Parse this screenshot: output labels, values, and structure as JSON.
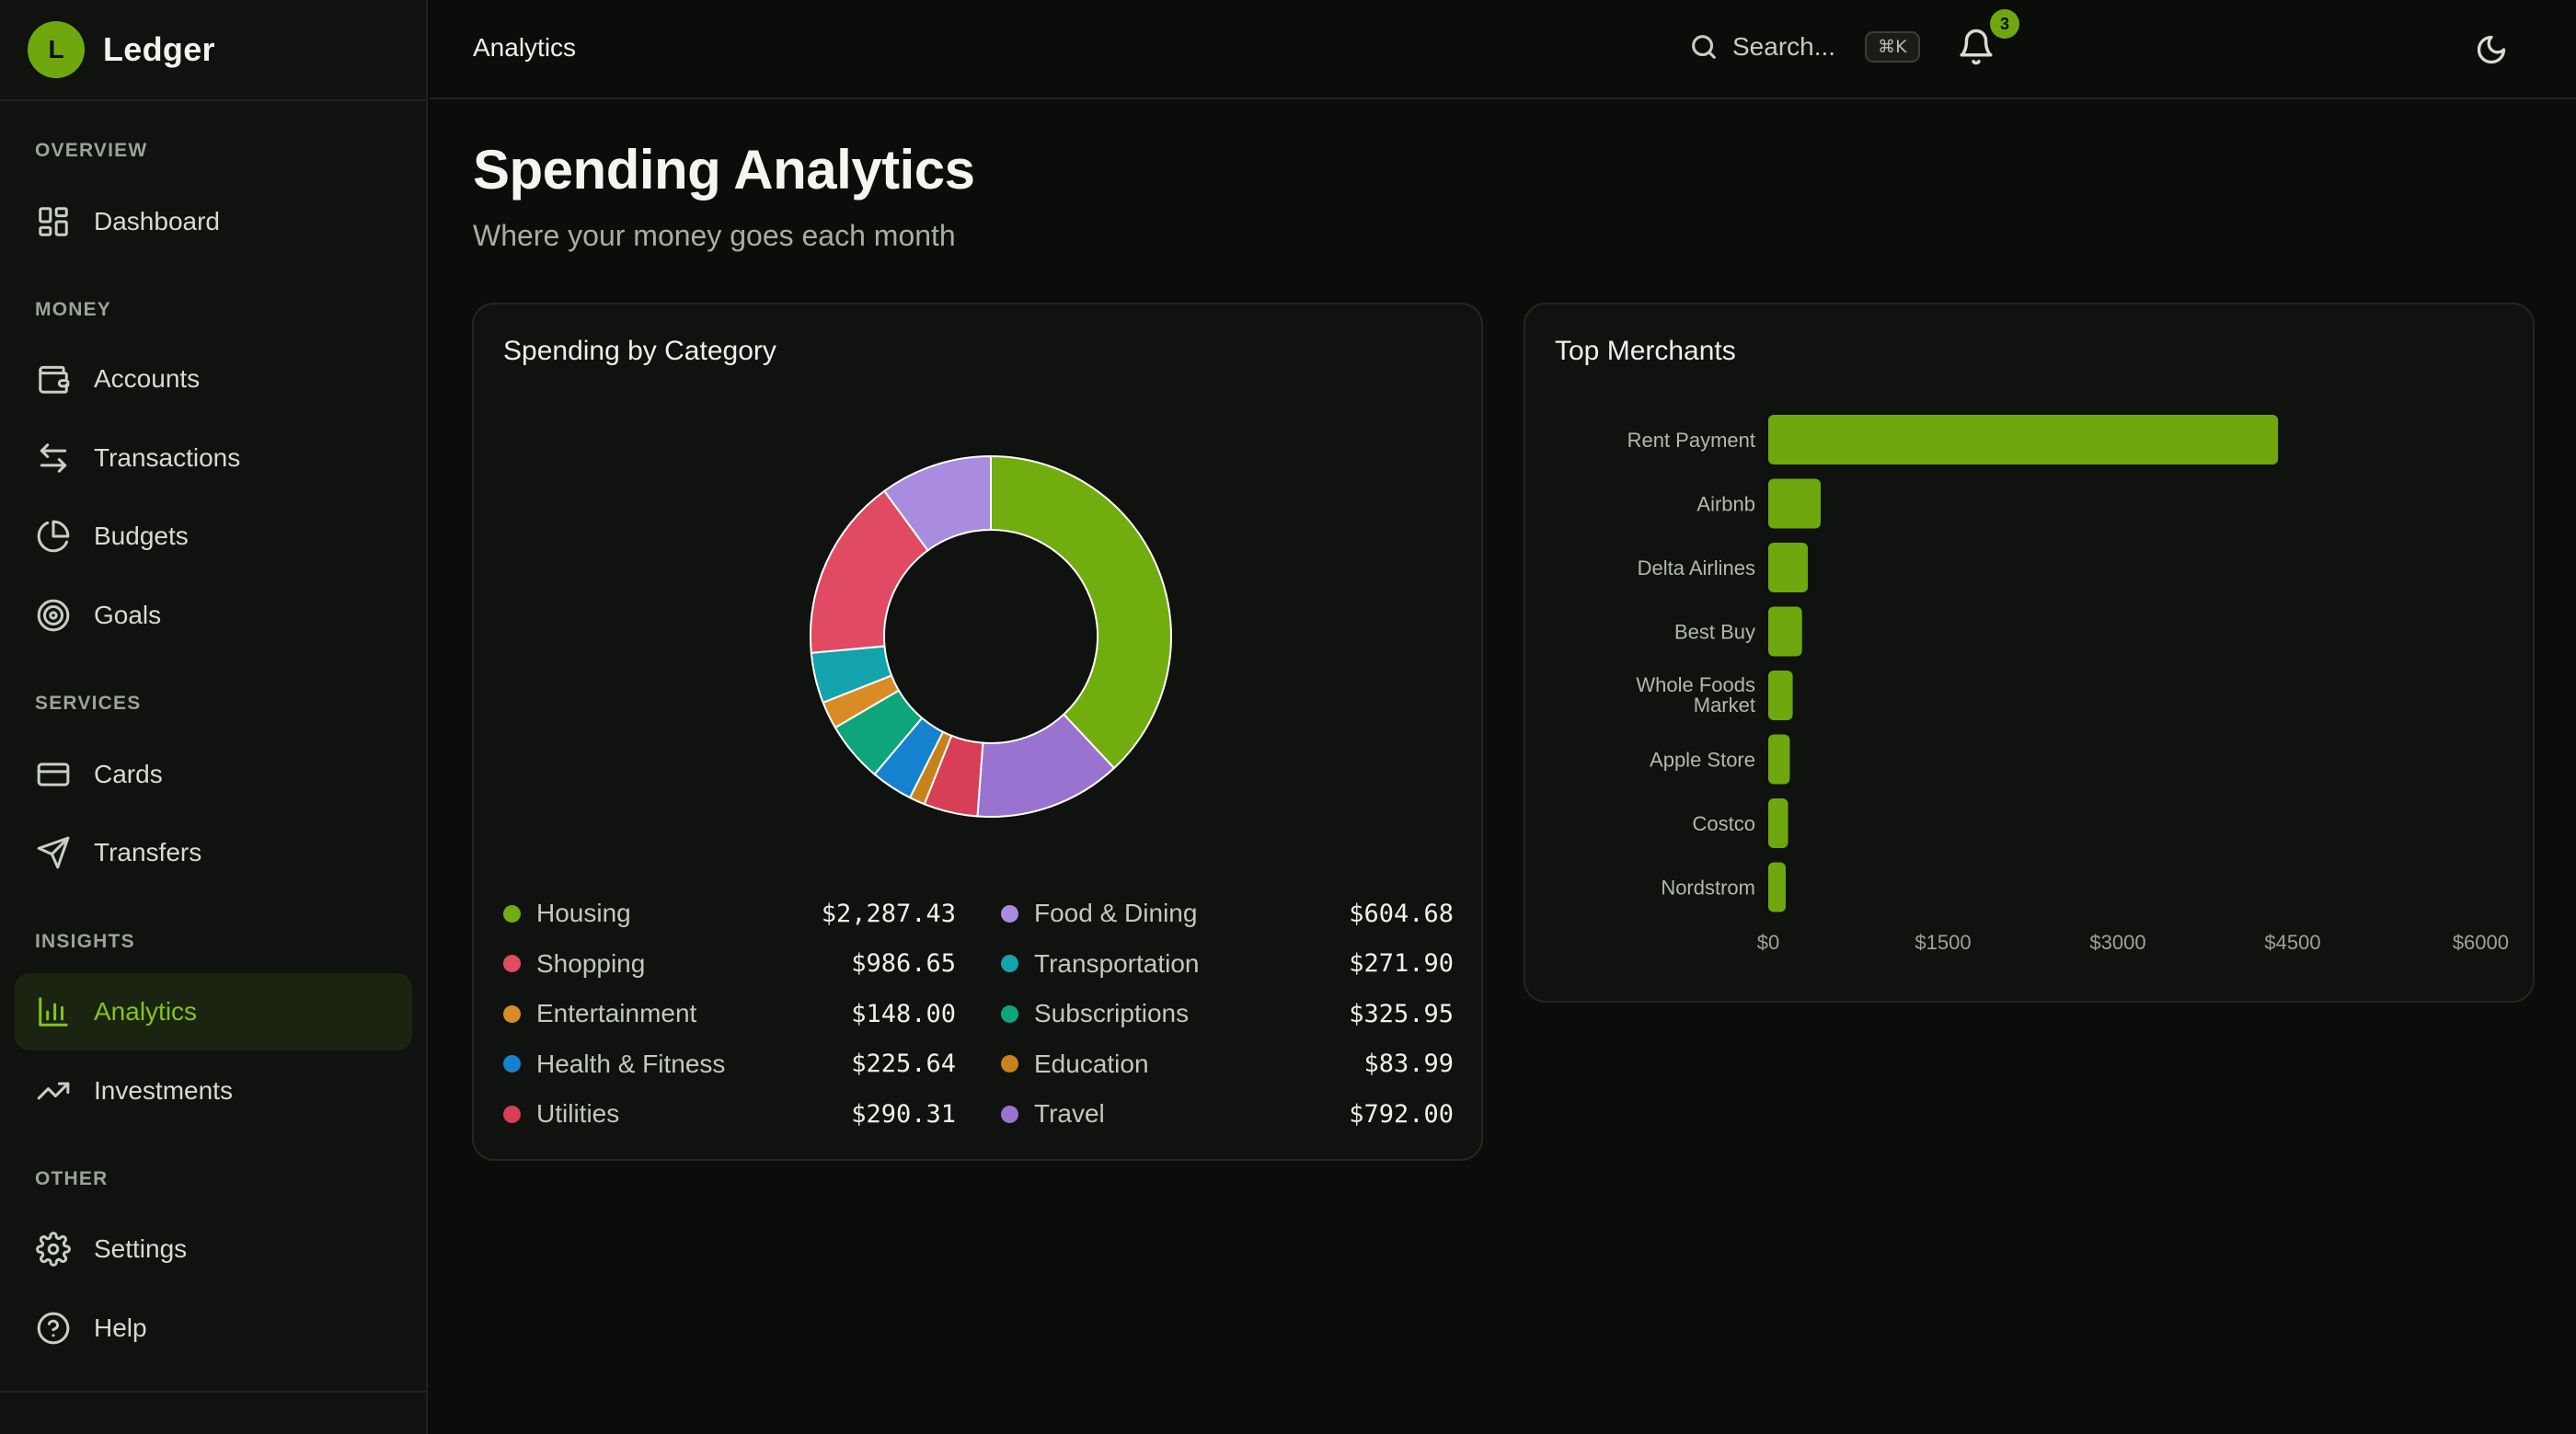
{
  "brand": {
    "initial": "L",
    "name": "Ledger"
  },
  "sidebar": {
    "sections": [
      {
        "label": "OVERVIEW"
      },
      {
        "label": "MONEY"
      },
      {
        "label": "SERVICES"
      },
      {
        "label": "INSIGHTS"
      },
      {
        "label": "OTHER"
      }
    ],
    "items": [
      {
        "label": "Dashboard",
        "icon": "dashboard-icon"
      },
      {
        "label": "Accounts",
        "icon": "wallet-icon"
      },
      {
        "label": "Transactions",
        "icon": "arrows-icon"
      },
      {
        "label": "Budgets",
        "icon": "pie-icon"
      },
      {
        "label": "Goals",
        "icon": "target-icon"
      },
      {
        "label": "Cards",
        "icon": "card-icon"
      },
      {
        "label": "Transfers",
        "icon": "send-icon"
      },
      {
        "label": "Analytics",
        "icon": "bar-chart-icon",
        "active": true
      },
      {
        "label": "Investments",
        "icon": "trend-icon"
      },
      {
        "label": "Settings",
        "icon": "gear-icon"
      },
      {
        "label": "Help",
        "icon": "help-icon"
      }
    ]
  },
  "header": {
    "breadcrumb": "Analytics",
    "search_placeholder": "Search...",
    "search_shortcut": "⌘K",
    "notification_count": "3"
  },
  "page": {
    "title": "Spending Analytics",
    "subtitle": "Where your money goes each month"
  },
  "colors": {
    "accent": "#6ea80e",
    "housing": "#71ad0e",
    "food": "#a98be0",
    "shopping": "#e04b63",
    "transportation": "#14a3ad",
    "entertainment": "#d98b26",
    "subscriptions": "#0fa57a",
    "health": "#1682cf",
    "education": "#c7821b",
    "utilities": "#d83e56",
    "travel": "#9a72cf"
  },
  "category_card": {
    "title": "Spending by Category",
    "categories": [
      {
        "name": "Housing",
        "amount": "$2,287.43",
        "value": 2287.43,
        "color": "#71ad0e"
      },
      {
        "name": "Food & Dining",
        "amount": "$604.68",
        "value": 604.68,
        "color": "#a98be0"
      },
      {
        "name": "Shopping",
        "amount": "$986.65",
        "value": 986.65,
        "color": "#e04b63"
      },
      {
        "name": "Transportation",
        "amount": "$271.90",
        "value": 271.9,
        "color": "#14a3ad"
      },
      {
        "name": "Entertainment",
        "amount": "$148.00",
        "value": 148.0,
        "color": "#d98b26"
      },
      {
        "name": "Subscriptions",
        "amount": "$325.95",
        "value": 325.95,
        "color": "#0fa57a"
      },
      {
        "name": "Health & Fitness",
        "amount": "$225.64",
        "value": 225.64,
        "color": "#1682cf"
      },
      {
        "name": "Education",
        "amount": "$83.99",
        "value": 83.99,
        "color": "#c7821b"
      },
      {
        "name": "Utilities",
        "amount": "$290.31",
        "value": 290.31,
        "color": "#d83e56"
      },
      {
        "name": "Travel",
        "amount": "$792.00",
        "value": 792.0,
        "color": "#9a72cf"
      }
    ]
  },
  "merchants_card": {
    "title": "Top Merchants"
  },
  "chart_data": [
    {
      "type": "pie",
      "title": "Spending by Category",
      "categories": [
        "Housing",
        "Travel",
        "Utilities",
        "Education",
        "Health & Fitness",
        "Subscriptions",
        "Entertainment",
        "Transportation",
        "Shopping",
        "Food & Dining"
      ],
      "values": [
        2287.43,
        792.0,
        290.31,
        83.99,
        225.64,
        325.95,
        148.0,
        271.9,
        986.65,
        604.68
      ],
      "colors": [
        "#71ad0e",
        "#9a72cf",
        "#d83e56",
        "#c7821b",
        "#1682cf",
        "#0fa57a",
        "#d98b26",
        "#14a3ad",
        "#e04b63",
        "#a98be0"
      ],
      "donut": true
    },
    {
      "type": "bar",
      "orientation": "horizontal",
      "title": "Top Merchants",
      "categories": [
        "Rent Payment",
        "Airbnb",
        "Delta Airlines",
        "Best Buy",
        "Whole Foods Market",
        "Apple Store",
        "Costco",
        "Nordstrom"
      ],
      "values": [
        4375,
        450,
        340,
        290,
        210,
        185,
        170,
        150
      ],
      "xlim": [
        0,
        6000
      ],
      "xticks": [
        "$0",
        "$1500",
        "$3000",
        "$4500",
        "$6000"
      ],
      "xtick_values": [
        0,
        1500,
        3000,
        4500,
        6000
      ],
      "color": "#6ea80e",
      "grid": false
    }
  ]
}
